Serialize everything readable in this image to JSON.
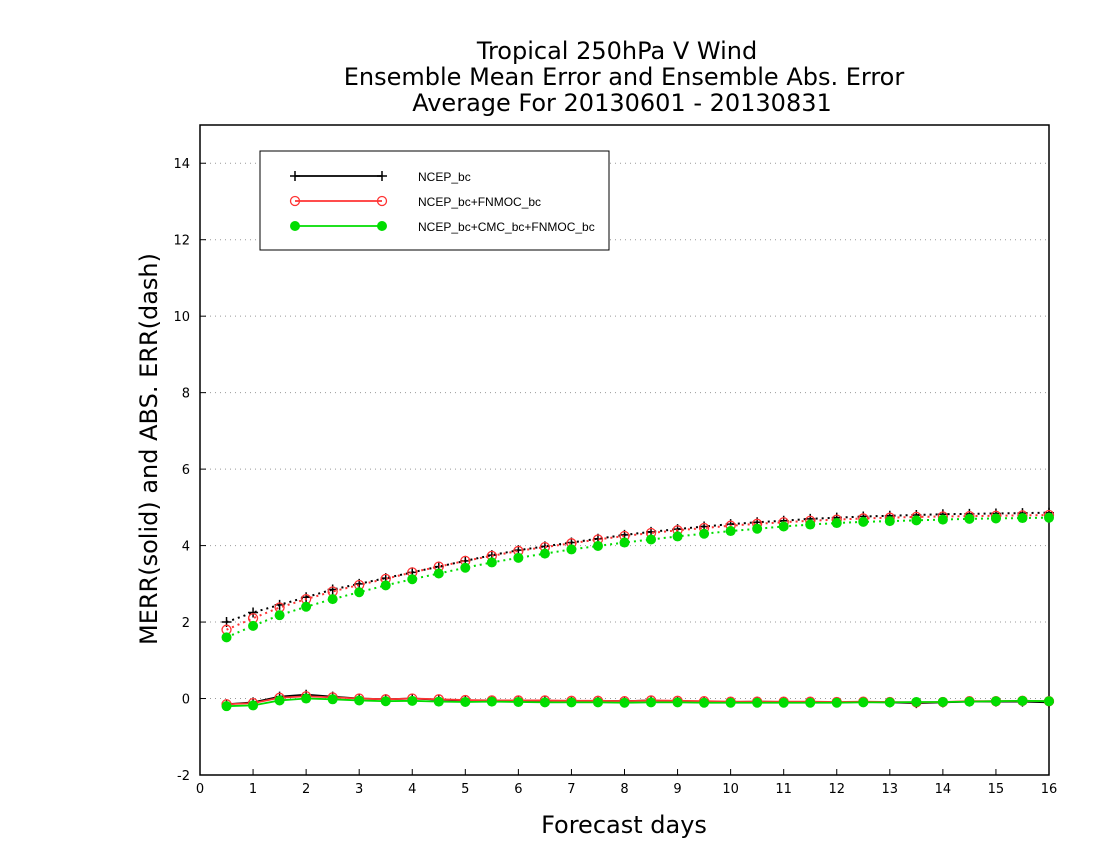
{
  "chart_data": {
    "type": "line",
    "title_lines": [
      "Tropical 250hPa V Wind",
      "Ensemble Mean Error and Ensemble Abs. Error",
      "Average For 20130601 - 20130831"
    ],
    "xlabel": "Forecast days",
    "ylabel": "MERR(solid) and ABS. ERR(dash)",
    "xlim": [
      0,
      16
    ],
    "ylim": [
      -2,
      15
    ],
    "x_ticks": [
      "0",
      "1",
      "2",
      "3",
      "4",
      "5",
      "6",
      "7",
      "8",
      "9",
      "10",
      "11",
      "12",
      "13",
      "14",
      "15",
      "16"
    ],
    "y_ticks": [
      "-2",
      "0",
      "2",
      "4",
      "6",
      "8",
      "10",
      "12",
      "14"
    ],
    "grid": "horizontal dotted",
    "legend_position": "top-left",
    "x": [
      0.5,
      1.0,
      1.5,
      2.0,
      2.5,
      3.0,
      3.5,
      4.0,
      4.5,
      5.0,
      5.5,
      6.0,
      6.5,
      7.0,
      7.5,
      8.0,
      8.5,
      9.0,
      9.5,
      10.0,
      10.5,
      11.0,
      11.5,
      12.0,
      12.5,
      13.0,
      13.5,
      14.0,
      14.5,
      15.0,
      15.5,
      16.0
    ],
    "series": [
      {
        "name": "NCEP_bc",
        "color": "#000000",
        "marker": "plus",
        "merr": [
          -0.15,
          -0.1,
          0.05,
          0.1,
          0.05,
          0.0,
          -0.02,
          0.0,
          -0.03,
          -0.05,
          -0.05,
          -0.05,
          -0.06,
          -0.07,
          -0.06,
          -0.07,
          -0.05,
          -0.08,
          -0.08,
          -0.09,
          -0.08,
          -0.09,
          -0.09,
          -0.1,
          -0.09,
          -0.1,
          -0.12,
          -0.1,
          -0.08,
          -0.08,
          -0.08,
          -0.1
        ],
        "abs_err": [
          2.0,
          2.25,
          2.45,
          2.65,
          2.85,
          3.0,
          3.15,
          3.3,
          3.45,
          3.6,
          3.75,
          3.88,
          3.98,
          4.08,
          4.18,
          4.28,
          4.36,
          4.43,
          4.5,
          4.56,
          4.61,
          4.65,
          4.7,
          4.73,
          4.76,
          4.78,
          4.8,
          4.82,
          4.83,
          4.84,
          4.85,
          4.86
        ]
      },
      {
        "name": "NCEP_bc+FNMOC_bc",
        "color": "#ff3333",
        "marker": "open-circle",
        "merr": [
          -0.15,
          -0.12,
          0.02,
          0.06,
          0.03,
          0.0,
          -0.02,
          0.0,
          -0.02,
          -0.04,
          -0.05,
          -0.05,
          -0.05,
          -0.06,
          -0.06,
          -0.07,
          -0.05,
          -0.06,
          -0.07,
          -0.08,
          -0.08,
          -0.08,
          -0.08,
          -0.09,
          -0.08,
          -0.09,
          -0.1,
          -0.09,
          -0.07,
          -0.07,
          -0.06,
          -0.07
        ],
        "abs_err": [
          1.8,
          2.1,
          2.38,
          2.6,
          2.8,
          2.97,
          3.13,
          3.3,
          3.45,
          3.6,
          3.73,
          3.86,
          3.96,
          4.06,
          4.16,
          4.25,
          4.33,
          4.4,
          4.46,
          4.52,
          4.57,
          4.61,
          4.65,
          4.68,
          4.71,
          4.73,
          4.75,
          4.76,
          4.77,
          4.78,
          4.79,
          4.8
        ]
      },
      {
        "name": "NCEP_bc+CMC_bc+FNMOC_bc",
        "color": "#00dd00",
        "marker": "filled-circle",
        "merr": [
          -0.2,
          -0.18,
          -0.05,
          0.0,
          -0.02,
          -0.05,
          -0.07,
          -0.06,
          -0.08,
          -0.09,
          -0.08,
          -0.09,
          -0.1,
          -0.1,
          -0.1,
          -0.11,
          -0.1,
          -0.1,
          -0.11,
          -0.11,
          -0.11,
          -0.11,
          -0.11,
          -0.11,
          -0.1,
          -0.1,
          -0.09,
          -0.09,
          -0.08,
          -0.07,
          -0.06,
          -0.07
        ],
        "abs_err": [
          1.6,
          1.9,
          2.18,
          2.4,
          2.6,
          2.78,
          2.96,
          3.12,
          3.27,
          3.42,
          3.56,
          3.68,
          3.79,
          3.9,
          3.99,
          4.08,
          4.16,
          4.24,
          4.31,
          4.38,
          4.44,
          4.5,
          4.55,
          4.59,
          4.62,
          4.64,
          4.66,
          4.68,
          4.7,
          4.71,
          4.72,
          4.73
        ]
      }
    ]
  }
}
